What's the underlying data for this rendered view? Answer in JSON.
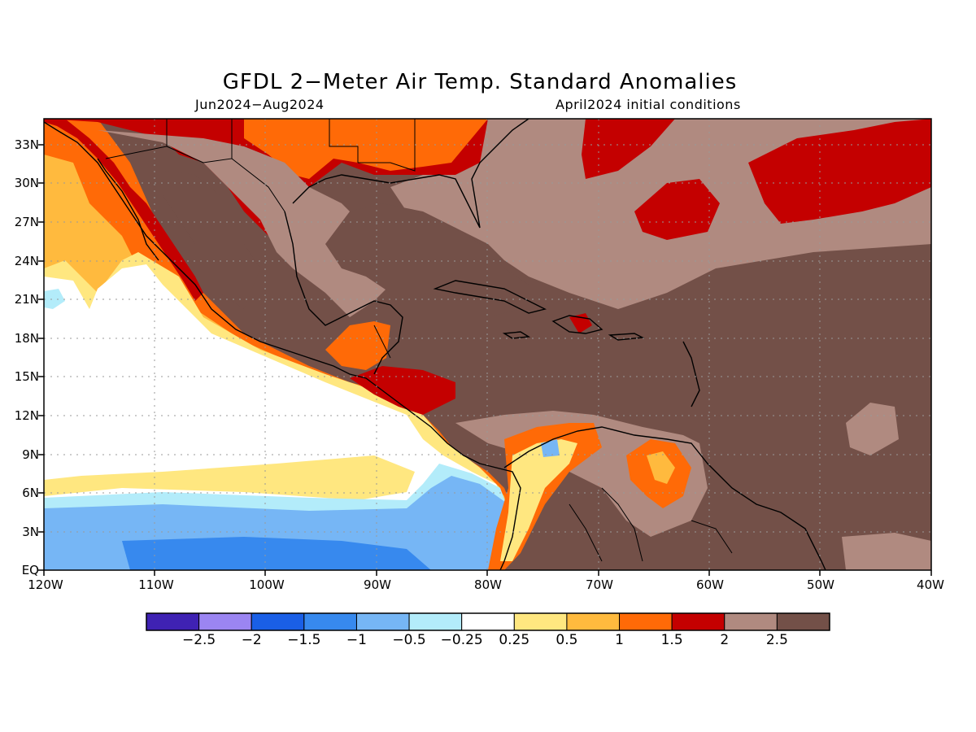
{
  "title": "GFDL 2−Meter Air Temp. Standard Anomalies",
  "season": "Jun2024−Aug2024",
  "init": "April2024 initial conditions",
  "lat_labels": [
    "33N",
    "30N",
    "27N",
    "24N",
    "21N",
    "18N",
    "15N",
    "12N",
    "9N",
    "6N",
    "3N",
    "EQ"
  ],
  "lon_labels": [
    "120W",
    "110W",
    "100W",
    "90W",
    "80W",
    "70W",
    "60W",
    "50W",
    "40W"
  ],
  "colorbar": {
    "colors": [
      "#3f22b3",
      "#9b85f2",
      "#1a5fe6",
      "#3789ee",
      "#76b6f5",
      "#b3ecfa",
      "#ffffff",
      "#ffe780",
      "#ffba3e",
      "#ff6a07",
      "#c40000",
      "#b08a80",
      "#735048"
    ],
    "labels": [
      "−2.5",
      "−2",
      "−1.5",
      "−1",
      "−0.5",
      "−0.25",
      "0.25",
      "0.5",
      "1",
      "1.5",
      "2",
      "2.5"
    ]
  },
  "map": {
    "lon_range": [
      -120,
      -40
    ],
    "lat_range": [
      0,
      35
    ],
    "grid": "dotted every 10 degrees lon / 3 degrees lat"
  }
}
